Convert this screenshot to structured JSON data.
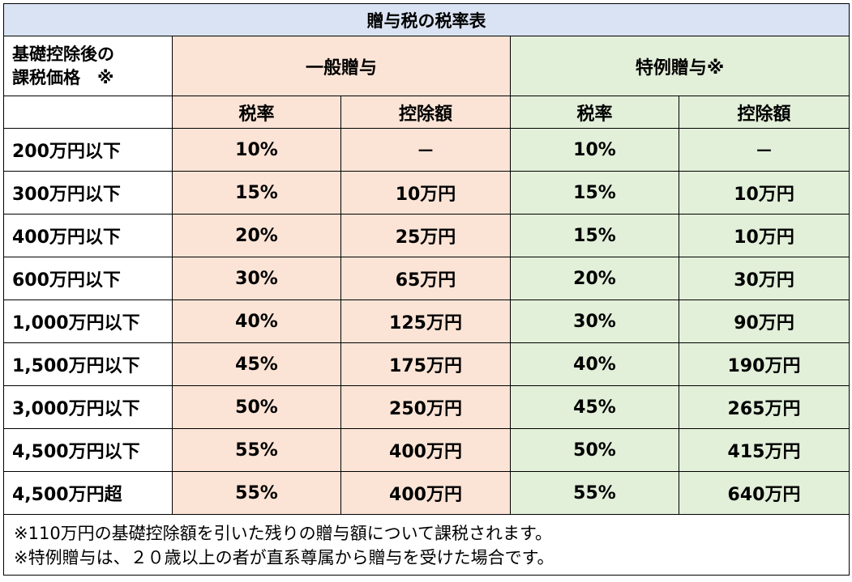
{
  "table": {
    "title": "贈与税の税率表",
    "corner_label_line1": "基礎控除後の",
    "corner_label_line2": "課税価格　※",
    "group_general": "一般贈与",
    "group_special": "特例贈与※",
    "col_rate": "税率",
    "col_deduction": "控除額",
    "rows": [
      {
        "label": "200万円以下",
        "general_rate": "10%",
        "general_deduction": "－",
        "special_rate": "10%",
        "special_deduction": "－"
      },
      {
        "label": "300万円以下",
        "general_rate": "15%",
        "general_deduction": "10万円",
        "special_rate": "15%",
        "special_deduction": "10万円"
      },
      {
        "label": "400万円以下",
        "general_rate": "20%",
        "general_deduction": "25万円",
        "special_rate": "15%",
        "special_deduction": "10万円"
      },
      {
        "label": "600万円以下",
        "general_rate": "30%",
        "general_deduction": "65万円",
        "special_rate": "20%",
        "special_deduction": "30万円"
      },
      {
        "label": "1,000万円以下",
        "general_rate": "40%",
        "general_deduction": "125万円",
        "special_rate": "30%",
        "special_deduction": "90万円"
      },
      {
        "label": "1,500万円以下",
        "general_rate": "45%",
        "general_deduction": "175万円",
        "special_rate": "40%",
        "special_deduction": "190万円"
      },
      {
        "label": "3,000万円以下",
        "general_rate": "50%",
        "general_deduction": "250万円",
        "special_rate": "45%",
        "special_deduction": "265万円"
      },
      {
        "label": "4,500万円以下",
        "general_rate": "55%",
        "general_deduction": "400万円",
        "special_rate": "50%",
        "special_deduction": "415万円"
      },
      {
        "label": "4,500万円超",
        "general_rate": "55%",
        "general_deduction": "400万円",
        "special_rate": "55%",
        "special_deduction": "640万円"
      }
    ],
    "notes": [
      "※110万円の基礎控除額を引いた残りの贈与額について課税されます。",
      "※特例贈与は、２０歳以上の者が直系尊属から贈与を受けた場合です。"
    ]
  },
  "colors": {
    "title_bg": "#dae3f3",
    "general_bg": "#fbe4d6",
    "special_bg": "#e2efd9",
    "border": "#000000"
  }
}
